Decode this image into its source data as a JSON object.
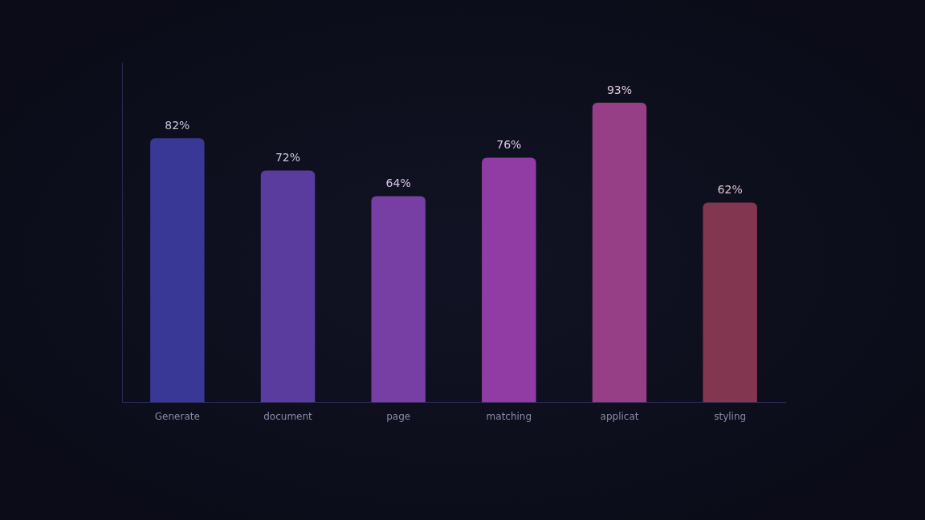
{
  "chart_data": {
    "type": "bar",
    "categories": [
      "Generate",
      "document",
      "page",
      "matching",
      "applicat",
      "styling"
    ],
    "values": [
      82,
      72,
      64,
      76,
      93,
      62
    ],
    "value_labels": [
      "82%",
      "72%",
      "64%",
      "76%",
      "93%",
      "62%"
    ],
    "colors": [
      "#3a3896",
      "#5a3c9e",
      "#773ea4",
      "#913ca4",
      "#963f86",
      "#83364f"
    ]
  }
}
